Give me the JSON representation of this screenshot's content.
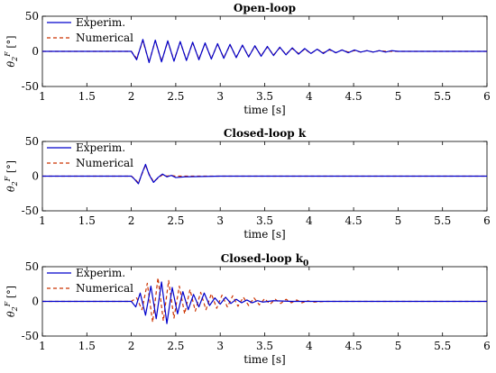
{
  "chart_data": [
    {
      "type": "line",
      "title": "Open-loop",
      "ylabel_symbol": "θ",
      "ylabel_sup": "F",
      "ylabel_sub": "2",
      "ylabel_unit": "[°]",
      "xlabel": "time [s]",
      "xlim": [
        1,
        6
      ],
      "ylim": [
        -50,
        50
      ],
      "xticks": [
        "1",
        "1.5",
        "2",
        "2.5",
        "3",
        "3.5",
        "4",
        "4.5",
        "5",
        "5.5",
        "6"
      ],
      "yticks": [
        "50",
        "0",
        "-50"
      ],
      "legend": [
        "Experim.",
        "Numerical"
      ],
      "legend_position": "top-left",
      "series": [
        {
          "name": "Experim.",
          "color": "#0000cc",
          "style": "solid",
          "x": [
            1,
            1.5,
            2.0,
            2.06,
            2.13,
            2.2,
            2.27,
            2.34,
            2.41,
            2.48,
            2.55,
            2.62,
            2.69,
            2.76,
            2.83,
            2.9,
            2.97,
            3.04,
            3.11,
            3.18,
            3.25,
            3.32,
            3.39,
            3.46,
            3.53,
            3.6,
            3.67,
            3.74,
            3.81,
            3.88,
            3.95,
            4.02,
            4.09,
            4.16,
            4.23,
            4.3,
            4.37,
            4.44,
            4.51,
            4.58,
            4.65,
            4.72,
            4.79,
            4.86,
            4.93,
            5.0,
            5.2,
            5.5,
            6.0
          ],
          "y": [
            0,
            0,
            0,
            -12,
            17,
            -16,
            16,
            -15,
            15,
            -14,
            14,
            -13,
            13,
            -12,
            12,
            -11,
            11,
            -10,
            10,
            -9,
            9,
            -8,
            8,
            -7,
            7,
            -6,
            6,
            -5,
            5,
            -4,
            4,
            -3,
            3,
            -3,
            3,
            -2,
            2,
            -2,
            2,
            -1,
            1,
            -1,
            1,
            -1,
            1,
            0,
            0,
            0,
            0
          ]
        },
        {
          "name": "Numerical",
          "color": "#cc3300",
          "style": "dashed",
          "x": [
            1,
            1.5,
            2.0,
            2.06,
            2.13,
            2.2,
            2.27,
            2.34,
            2.41,
            2.48,
            2.55,
            2.62,
            2.69,
            2.76,
            2.83,
            2.9,
            2.97,
            3.04,
            3.11,
            3.18,
            3.25,
            3.32,
            3.39,
            3.46,
            3.53,
            3.6,
            3.67,
            3.74,
            3.81,
            3.88,
            3.95,
            4.02,
            4.09,
            4.16,
            4.23,
            4.3,
            4.37,
            4.44,
            4.51,
            4.58,
            4.65,
            4.72,
            4.79,
            4.86,
            4.93,
            5.0,
            5.2,
            5.5,
            6.0
          ],
          "y": [
            0,
            0,
            0,
            -10,
            15,
            -15,
            15,
            -14,
            14,
            -13,
            13,
            -12,
            12,
            -11,
            11,
            -10,
            10,
            -9,
            9,
            -8,
            8,
            -7,
            7,
            -6,
            6,
            -5,
            5,
            -4,
            4,
            -3,
            3,
            -3,
            3,
            -2,
            2,
            -2,
            2,
            -1,
            1,
            -1,
            1,
            -1,
            1,
            0,
            0,
            0,
            0,
            0,
            0
          ]
        }
      ]
    },
    {
      "type": "line",
      "title": "Closed-loop  k",
      "ylabel_symbol": "θ",
      "ylabel_sup": "F",
      "ylabel_sub": "2",
      "ylabel_unit": "[°]",
      "xlabel": "time [s]",
      "xlim": [
        1,
        6
      ],
      "ylim": [
        -50,
        50
      ],
      "xticks": [
        "1",
        "1.5",
        "2",
        "2.5",
        "3",
        "3.5",
        "4",
        "4.5",
        "5",
        "5.5",
        "6"
      ],
      "yticks": [
        "50",
        "0",
        "-50"
      ],
      "legend": [
        "Experim.",
        "Numerical"
      ],
      "legend_position": "top-left",
      "series": [
        {
          "name": "Experim.",
          "color": "#0000cc",
          "style": "solid",
          "x": [
            1,
            1.5,
            2.0,
            2.04,
            2.08,
            2.12,
            2.16,
            2.2,
            2.25,
            2.3,
            2.35,
            2.4,
            2.45,
            2.5,
            2.6,
            3.0,
            6.0
          ],
          "y": [
            0,
            0,
            0,
            -5,
            -11,
            4,
            17,
            2,
            -9,
            -2,
            3,
            -1,
            1,
            -2,
            -1,
            0,
            0
          ]
        },
        {
          "name": "Numerical",
          "color": "#cc3300",
          "style": "dashed",
          "x": [
            1,
            1.5,
            2.0,
            2.04,
            2.08,
            2.12,
            2.16,
            2.2,
            2.25,
            2.3,
            2.35,
            2.4,
            2.45,
            2.5,
            2.6,
            3.0,
            6.0
          ],
          "y": [
            0,
            0,
            0,
            -4,
            -10,
            3,
            16,
            3,
            -8,
            -3,
            2,
            0,
            1,
            0,
            0,
            0,
            0
          ]
        }
      ]
    },
    {
      "type": "line",
      "title": "Closed-loop  k",
      "title_sub": "0",
      "ylabel_symbol": "θ",
      "ylabel_sup": "F",
      "ylabel_sub": "2",
      "ylabel_unit": "[°]",
      "xlabel": "time [s]",
      "xlim": [
        1,
        6
      ],
      "ylim": [
        -50,
        50
      ],
      "xticks": [
        "1",
        "1.5",
        "2",
        "2.5",
        "3",
        "3.5",
        "4",
        "4.5",
        "5",
        "5.5",
        "6"
      ],
      "yticks": [
        "50",
        "0",
        "-50"
      ],
      "legend": [
        "Experim.",
        "Numerical"
      ],
      "legend_position": "top-left",
      "series": [
        {
          "name": "Experim.",
          "color": "#0000cc",
          "style": "solid",
          "x": [
            1,
            1.5,
            2.0,
            2.05,
            2.1,
            2.16,
            2.22,
            2.28,
            2.34,
            2.4,
            2.46,
            2.52,
            2.58,
            2.64,
            2.7,
            2.76,
            2.82,
            2.88,
            2.94,
            3.0,
            3.06,
            3.12,
            3.18,
            3.24,
            3.3,
            3.36,
            3.42,
            3.48,
            3.6,
            3.8,
            4.0,
            6.0
          ],
          "y": [
            0,
            0,
            0,
            -8,
            12,
            -20,
            22,
            -25,
            28,
            -32,
            20,
            -18,
            14,
            -12,
            10,
            -8,
            12,
            -6,
            5,
            -4,
            6,
            -3,
            3,
            -2,
            2,
            -2,
            1,
            -1,
            1,
            0,
            0,
            0
          ]
        },
        {
          "name": "Numerical",
          "color": "#cc3300",
          "style": "dashed",
          "x": [
            1,
            1.5,
            2.0,
            2.06,
            2.12,
            2.18,
            2.24,
            2.3,
            2.36,
            2.42,
            2.48,
            2.54,
            2.6,
            2.66,
            2.72,
            2.78,
            2.84,
            2.9,
            2.96,
            3.02,
            3.08,
            3.14,
            3.2,
            3.26,
            3.32,
            3.38,
            3.44,
            3.5,
            3.56,
            3.62,
            3.68,
            3.74,
            3.8,
            3.86,
            3.92,
            3.98,
            4.04,
            4.2,
            4.4,
            6.0
          ],
          "y": [
            0,
            0,
            0,
            5,
            -12,
            26,
            -30,
            34,
            -28,
            30,
            -24,
            22,
            -18,
            17,
            -14,
            13,
            -12,
            11,
            -10,
            9,
            -8,
            8,
            -7,
            6,
            -6,
            5,
            -5,
            4,
            -4,
            3,
            -3,
            3,
            -2,
            2,
            -2,
            1,
            -1,
            0,
            0,
            0
          ]
        }
      ]
    }
  ]
}
